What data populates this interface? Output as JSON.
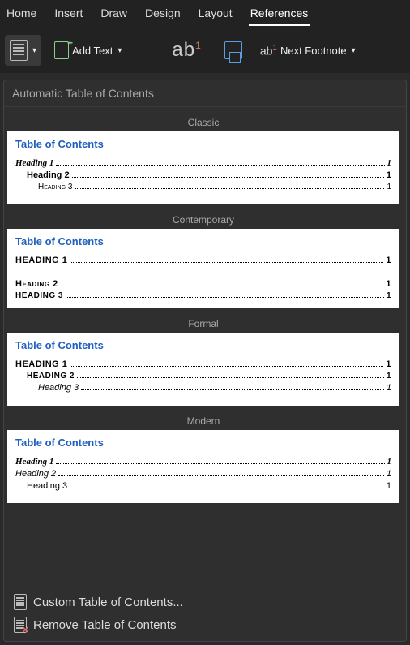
{
  "tabs": {
    "home": "Home",
    "insert": "Insert",
    "draw": "Draw",
    "design": "Design",
    "layout": "Layout",
    "references": "References"
  },
  "toolbar": {
    "add_text": "Add Text",
    "next_footnote": "Next Footnote",
    "ab": "ab",
    "ab_sup": "1"
  },
  "panel": {
    "title": "Automatic Table of Contents",
    "toc_label": "Table of Contents",
    "styles": {
      "classic": {
        "name": "Classic",
        "lines": [
          {
            "label": "Heading 1",
            "page": "1",
            "indent": 0,
            "cls": "st-bolditalic"
          },
          {
            "label": "Heading 2",
            "page": "1",
            "indent": 1,
            "cls": "st-bold"
          },
          {
            "label": "Heading 3",
            "page": "1",
            "indent": 2,
            "cls": "st-plainsmall"
          }
        ]
      },
      "contemporary": {
        "name": "Contemporary",
        "spacer_after_first": true,
        "lines": [
          {
            "label": "HEADING 1",
            "page": "1",
            "indent": 0,
            "cls": "st-upper"
          },
          {
            "label": "Heading 2",
            "page": "1",
            "indent": 0,
            "cls": "st-boldsmall"
          },
          {
            "label": "Heading 3",
            "page": "1",
            "indent": 0,
            "cls": "st-uppersmall"
          }
        ]
      },
      "formal": {
        "name": "Formal",
        "lines": [
          {
            "label": "HEADING 1",
            "page": "1",
            "indent": 0,
            "cls": "st-upper"
          },
          {
            "label": "Heading 2",
            "page": "1",
            "indent": 1,
            "cls": "st-uppersmall"
          },
          {
            "label": "Heading 3",
            "page": "1",
            "indent": 2,
            "cls": "st-italic"
          }
        ]
      },
      "modern": {
        "name": "Modern",
        "lines": [
          {
            "label": "Heading 1",
            "page": "1",
            "indent": 0,
            "cls": "st-bolditalic"
          },
          {
            "label": "Heading 2",
            "page": "1",
            "indent": 0,
            "cls": "st-italic"
          },
          {
            "label": "Heading 3",
            "page": "1",
            "indent": 1,
            "cls": ""
          }
        ]
      }
    },
    "footer": {
      "custom": "Custom Table of Contents...",
      "remove": "Remove Table of Contents"
    }
  }
}
